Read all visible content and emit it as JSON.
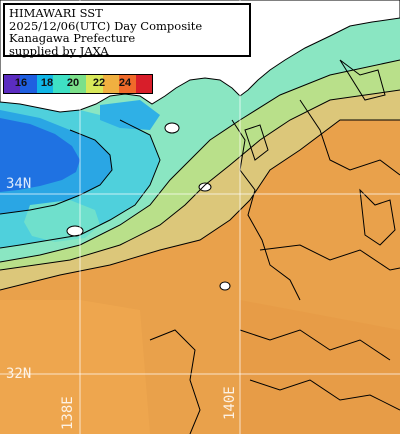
{
  "title": {
    "line1": "HIMAWARI SST",
    "line2": "2025/12/06(UTC) Day Composite",
    "line3": "Kanagawa Prefecture",
    "line4": "supplied by JAXA"
  },
  "legend": {
    "ticks": [
      "16",
      "18",
      "20",
      "22",
      "24"
    ],
    "colors": [
      "#5b2cc0",
      "#1f5fe0",
      "#12b6e6",
      "#3fe0c4",
      "#7be08a",
      "#d8e85a",
      "#f0b040",
      "#f06a2a",
      "#d81e2a"
    ]
  },
  "grid": {
    "lat_labels": [
      "34N",
      "32N"
    ],
    "lon_labels": [
      "138E",
      "140E"
    ]
  },
  "colors": {
    "land": "#ffffff",
    "warm_sea": "#e9a14b",
    "mid_sea": "#c7dc8a",
    "cool_sea": "#7fe0c0",
    "cold_sea": "#2fb8e6",
    "coldest_sea": "#1a72e2",
    "grid": "#ffffff",
    "contour": "#000000"
  }
}
